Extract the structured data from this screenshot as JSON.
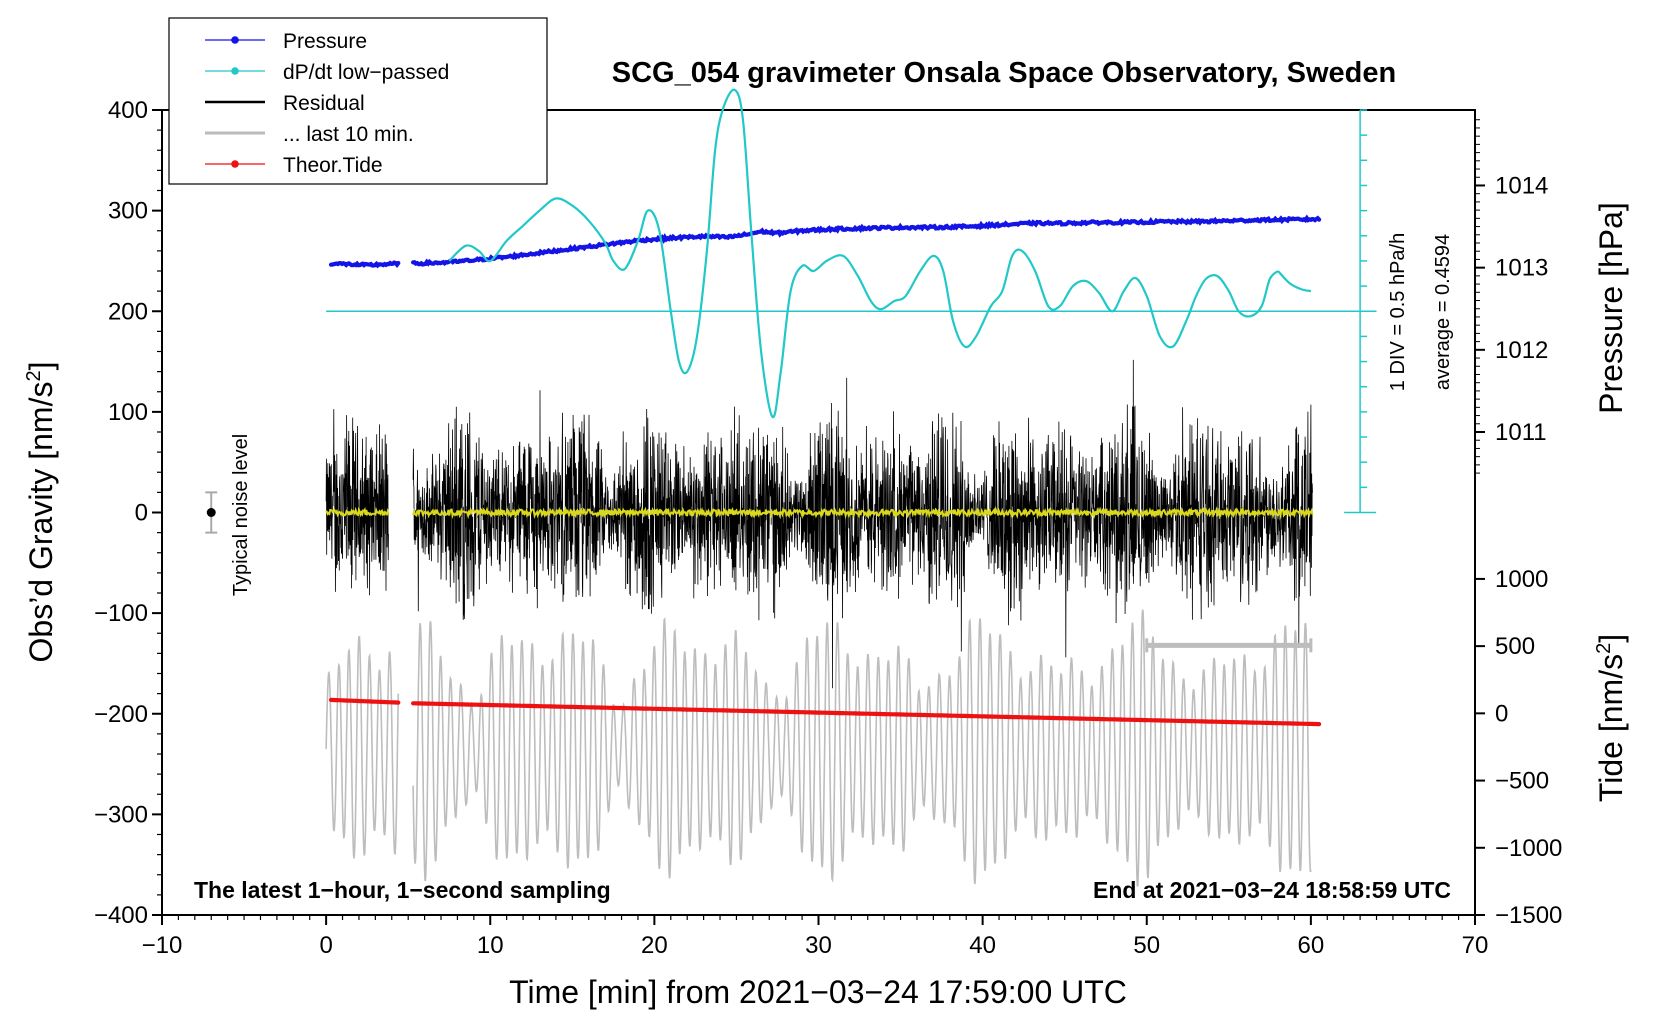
{
  "chart_data": {
    "type": "line",
    "title": "SCG_054 gravimeter Onsala Space Observatory, Sweden",
    "xlabel": "Time [min] from 2021−03−24 17:59:00 UTC",
    "ylabel_left": "Obs’d Gravity [nm/s",
    "ylabel_left_sup": "2",
    "ylabel_left_end": "]",
    "ylabel_right_pressure": "Pressure [hPa]",
    "ylabel_right_tide": "Tide [nm/s",
    "ylabel_right_tide_sup": "2",
    "ylabel_right_tide_end": "]",
    "xlim": [
      -10,
      70
    ],
    "ylim_left": [
      -400,
      400
    ],
    "x_ticks": [
      -10,
      0,
      10,
      20,
      30,
      40,
      50,
      60,
      70
    ],
    "x_tick_labels": [
      "−10",
      "0",
      "10",
      "20",
      "30",
      "40",
      "50",
      "60",
      "70"
    ],
    "y_ticks_left": [
      400,
      300,
      200,
      100,
      0,
      -100,
      -200,
      -300,
      -400
    ],
    "y_tick_labels_left": [
      "400",
      "300",
      "200",
      "100",
      "0",
      "−100",
      "−200",
      "−300",
      "−400"
    ],
    "pressure_axis": {
      "ticks": [
        1014,
        1013,
        1012,
        1011
      ],
      "labels": [
        "1014",
        "1013",
        "1012",
        "1011"
      ],
      "range": [
        1010.0,
        1015.0
      ]
    },
    "tide_axis": {
      "ticks": [
        1000,
        500,
        0,
        -500,
        -1000,
        -1500
      ],
      "labels": [
        "1000",
        "500",
        "0",
        "−500",
        "−1000",
        "−1500"
      ],
      "range": [
        -1500,
        1500
      ]
    },
    "dpdt_scale": {
      "text_div": "1 DIV = 0.5 hPa/h",
      "text_avg": "average = 0.4594",
      "x": 63,
      "y_bottom": 0,
      "y_top": 400,
      "divisions": 16,
      "baseline_y": 200,
      "baseline_x_range": [
        0,
        64
      ]
    },
    "legend": [
      {
        "label": "Pressure",
        "color": "#1414e6",
        "marker": true
      },
      {
        "label": "dP/dt low−passed",
        "color": "#22c8c8",
        "marker": true
      },
      {
        "label": "Residual",
        "color": "#000000",
        "marker": false
      },
      {
        "label": "... last 10 min.",
        "color": "#bbbbbb",
        "marker": false
      },
      {
        "label": "Theor.Tide",
        "color": "#ee1111",
        "marker": true
      }
    ],
    "series": [
      {
        "name": "Pressure",
        "color": "#1414e6",
        "axis": "pressure",
        "segments": [
          {
            "x": [
              0.3,
              1.5,
              2.5,
              3.5,
              4.4
            ],
            "y": [
              1013.05,
              1013.04,
              1013.03,
              1013.04,
              1013.05
            ]
          },
          {
            "x": [
              5.3,
              7,
              9,
              11,
              13,
              15,
              17,
              19,
              21,
              23,
              24.5,
              25.5,
              26.5,
              27.5,
              29,
              31,
              33,
              35,
              37,
              39,
              41,
              43,
              45,
              47,
              49,
              51,
              53,
              55,
              57,
              60.5
            ],
            "y": [
              1013.05,
              1013.06,
              1013.09,
              1013.13,
              1013.18,
              1013.23,
              1013.28,
              1013.33,
              1013.36,
              1013.38,
              1013.37,
              1013.4,
              1013.44,
              1013.42,
              1013.45,
              1013.47,
              1013.48,
              1013.49,
              1013.49,
              1013.5,
              1013.52,
              1013.54,
              1013.54,
              1013.55,
              1013.55,
              1013.56,
              1013.56,
              1013.57,
              1013.58,
              1013.59
            ]
          }
        ]
      },
      {
        "name": "dP/dt low-passed",
        "color": "#22c8c8",
        "axis": "left",
        "segments": [
          {
            "x": [
              7.5,
              8.5,
              9.3,
              10,
              11,
              12,
              13,
              14,
              15,
              16,
              17,
              17.5,
              18.2,
              19,
              19.6,
              20.3,
              21,
              21.5,
              22,
              22.6,
              23.2,
              23.7,
              24.2,
              24.9,
              25.4,
              25.9,
              26.5,
              27.2,
              27.7,
              28.3,
              29,
              29.7,
              30.5,
              31.5,
              32.4,
              33.2,
              33.8,
              34.6,
              35.3,
              36.2,
              37,
              37.6,
              38.2,
              38.9,
              39.6,
              40.5,
              41.2,
              41.8,
              42.4,
              43.2,
              44,
              44.7,
              45.5,
              46.3,
              47.1,
              47.9,
              48.6,
              49.3,
              50,
              50.8,
              51.6,
              52.4,
              53,
              53.6,
              54.3,
              55,
              55.6,
              56.3,
              57,
              57.5,
              58
            ],
            "y": [
              250,
              265,
              260,
              250,
              270,
              285,
              300,
              312,
              305,
              290,
              268,
              250,
              242,
              270,
              300,
              280,
              200,
              150,
              140,
              175,
              260,
              360,
              402,
              420,
              390,
              280,
              160,
              95,
              140,
              220,
              245,
              240,
              250,
              255,
              235,
              210,
              202,
              210,
              215,
              240,
              255,
              240,
              190,
              165,
              175,
              205,
              220,
              255,
              260,
              240,
              205,
              205,
              225,
              230,
              218,
              200,
              220,
              233,
              215,
              175,
              165,
              190,
              215,
              232,
              235,
              220,
              200,
              195,
              205,
              232,
              240
            ]
          },
          {
            "x": [
              58,
              58.7,
              59.4,
              60
            ],
            "y": [
              240,
              228,
              222,
              220
            ]
          }
        ]
      },
      {
        "name": "Theor.Tide",
        "color": "#ee1111",
        "axis": "tide",
        "segments": [
          {
            "x": [
              0.3,
              4.4
            ],
            "y": [
              100,
              80
            ]
          },
          {
            "x": [
              5.3,
              60.5
            ],
            "y": [
              75,
              -80
            ]
          }
        ]
      }
    ],
    "noise_level": {
      "label": "Typical noise level",
      "x": -7,
      "y": 0,
      "err": 20
    },
    "last10_bar": {
      "x": [
        50,
        60
      ],
      "y": -132
    },
    "annotations": {
      "left": "The latest 1−hour, 1−second sampling",
      "right": "End at 2021−03−24 18:58:59 UTC"
    },
    "residual_envelope_note": "dense 1-second residual trace approx. ±100 nm/s2 from 0 to 60 min with gap 3.8–5.3 min"
  }
}
